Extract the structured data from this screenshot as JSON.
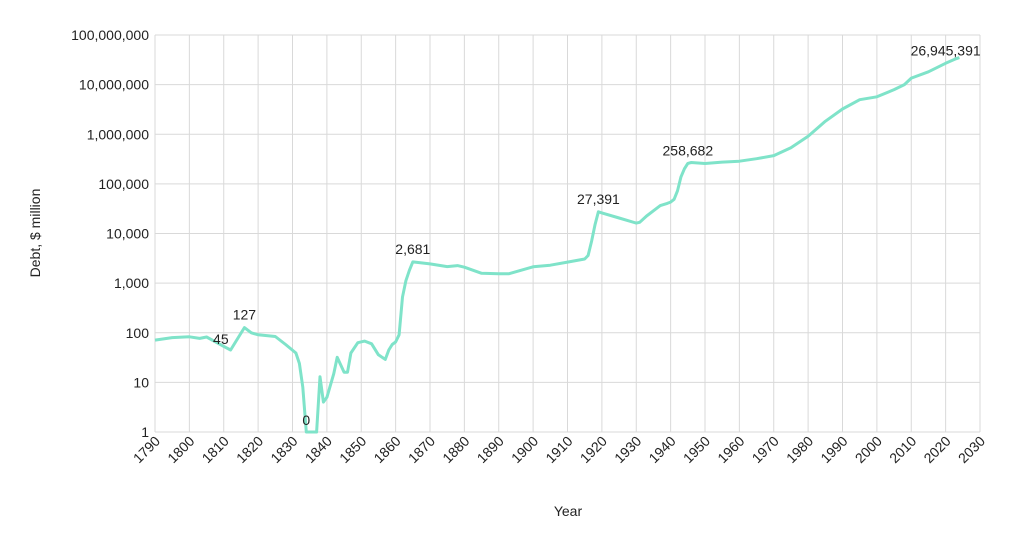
{
  "chart_data": {
    "type": "line",
    "title": "",
    "xlabel": "Year",
    "ylabel": "Debt, $ million",
    "xlim": [
      1790,
      2030
    ],
    "ylim": [
      1,
      100000000
    ],
    "yscale": "log",
    "grid": true,
    "line_color": "#7fe3c9",
    "x_ticks": [
      "1790",
      "1800",
      "1810",
      "1820",
      "1830",
      "1840",
      "1850",
      "1860",
      "1870",
      "1880",
      "1890",
      "1900",
      "1910",
      "1920",
      "1930",
      "1940",
      "1950",
      "1960",
      "1970",
      "1980",
      "1990",
      "2000",
      "2010",
      "2020",
      "2030"
    ],
    "y_ticks": [
      "1",
      "10",
      "100",
      "1,000",
      "10,000",
      "100,000",
      "1,000,000",
      "10,000,000",
      "100,000,000"
    ],
    "series": [
      {
        "x": [
          1790,
          1795,
          1800,
          1803,
          1805,
          1810,
          1812,
          1816,
          1818,
          1820,
          1825,
          1828,
          1831,
          1832,
          1833,
          1834,
          1835,
          1836,
          1837,
          1838,
          1839,
          1840,
          1842,
          1843,
          1845,
          1846,
          1847,
          1849,
          1851,
          1853,
          1855,
          1857,
          1858,
          1859,
          1860,
          1861,
          1862,
          1863,
          1864,
          1865,
          1870,
          1875,
          1878,
          1880,
          1885,
          1890,
          1893,
          1900,
          1905,
          1910,
          1915,
          1916,
          1917,
          1918,
          1919,
          1920,
          1925,
          1930,
          1931,
          1933,
          1935,
          1937,
          1939,
          1940,
          1941,
          1942,
          1943,
          1944,
          1945,
          1946,
          1950,
          1955,
          1960,
          1965,
          1970,
          1975,
          1980,
          1985,
          1990,
          1995,
          2000,
          2005,
          2008,
          2010,
          2015,
          2020,
          2023,
          2024
        ],
        "y": [
          71,
          80,
          83,
          77,
          82,
          53,
          45,
          127,
          100,
          91,
          84,
          58,
          39,
          24,
          8,
          0,
          0,
          0,
          0,
          13,
          4,
          5,
          15,
          32,
          16,
          16,
          39,
          63,
          68,
          60,
          36,
          29,
          45,
          58,
          65,
          91,
          525,
          1120,
          1816,
          2681,
          2436,
          2156,
          2256,
          2091,
          1579,
          1550,
          1550,
          2137,
          2300,
          2650,
          3058,
          3600,
          7000,
          15000,
          27391,
          25952,
          20516,
          16185,
          16801,
          22539,
          28701,
          36425,
          40440,
          42968,
          48961,
          72422,
          136696,
          201003,
          258682,
          269422,
          257357,
          274374,
          286331,
          322318,
          370919,
          533189,
          907701,
          1823103,
          3233313,
          4974000,
          5674178,
          7932710,
          10024725,
          13561623,
          18150618,
          26945391,
          33167000,
          35000000
        ]
      }
    ],
    "annotations": [
      {
        "x": 1812,
        "y": 45,
        "label": "45"
      },
      {
        "x": 1816,
        "y": 127,
        "label": "127"
      },
      {
        "x": 1834,
        "y": 0,
        "label": "0"
      },
      {
        "x": 1865,
        "y": 2681,
        "label": "2,681"
      },
      {
        "x": 1919,
        "y": 27391,
        "label": "27,391"
      },
      {
        "x": 1945,
        "y": 258682,
        "label": "258,682"
      },
      {
        "x": 2020,
        "y": 26945391,
        "label": "26,945,391"
      }
    ]
  }
}
